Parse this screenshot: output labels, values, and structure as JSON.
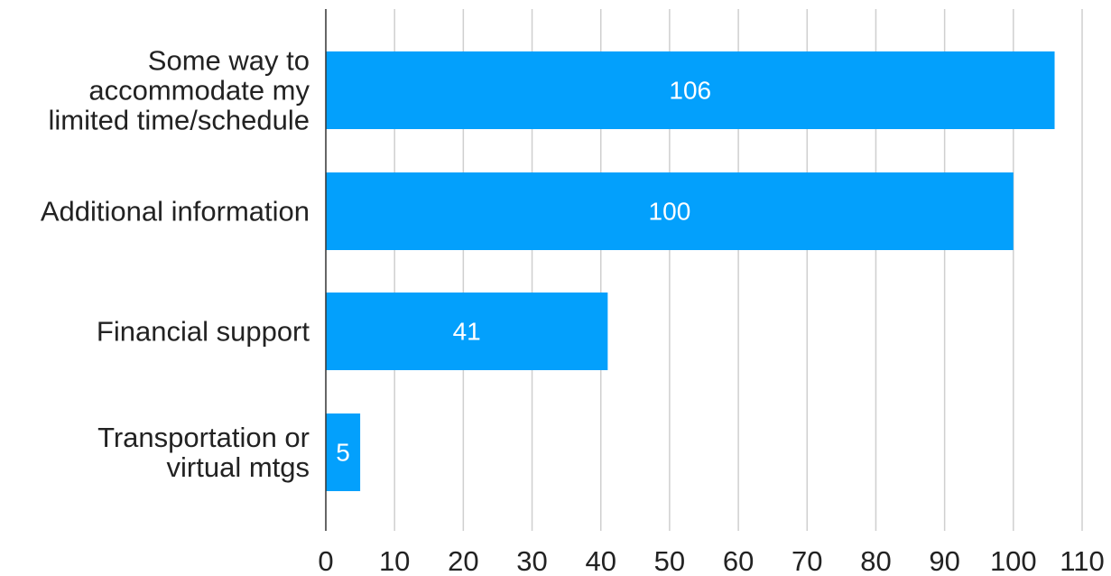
{
  "chart_data": {
    "type": "bar",
    "orientation": "horizontal",
    "categories": [
      [
        "Some way to",
        "accommodate my",
        "limited time/schedule"
      ],
      [
        "Additional information"
      ],
      [
        "Financial support"
      ],
      [
        "Transportation or",
        "virtual mtgs"
      ]
    ],
    "values": [
      106,
      100,
      41,
      5
    ],
    "xlim": [
      0,
      110
    ],
    "xticks": [
      0,
      10,
      20,
      30,
      40,
      50,
      60,
      70,
      80,
      90,
      100,
      110
    ],
    "grid": true,
    "data_labels": true,
    "bar_color": "#03a0fc",
    "title": "",
    "xlabel": "",
    "ylabel": ""
  }
}
